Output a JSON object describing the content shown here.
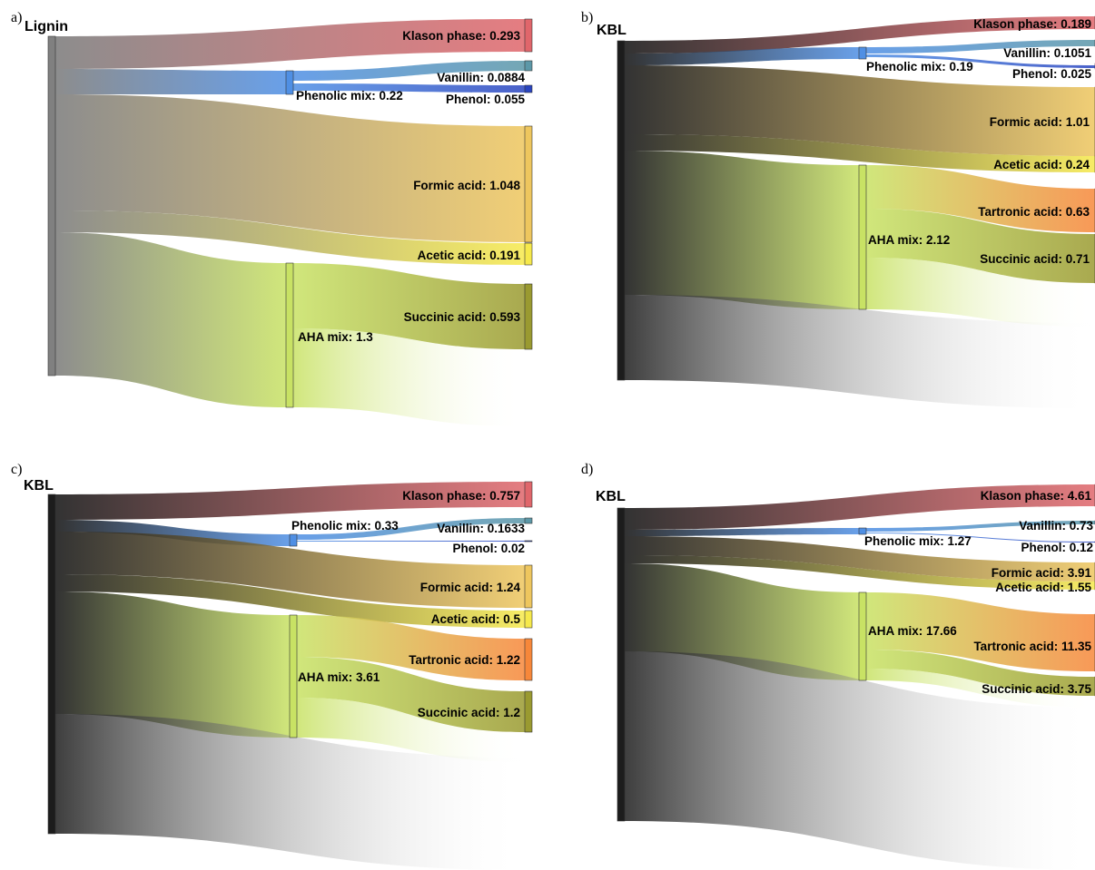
{
  "figure": {
    "type": "sankey",
    "colors": {
      "lignin_source": "#808080",
      "kbl_source": "#1c1c1c",
      "klason": "#e0666b",
      "phenolic": "#4f8fe4",
      "vanillin": "#5c98a8",
      "phenol": "#2a45c0",
      "formic": "#eec65e",
      "acetic": "#f6e94b",
      "aha": "#c8e264",
      "tartronic": "#f7873a",
      "succinic": "#9a9a30",
      "loss": "#ffffff"
    },
    "panels": [
      {
        "letter": "a)",
        "source": "Lignin",
        "source_color": "lignin_source",
        "nodes": [
          {
            "key": "phenolic",
            "label": "Phenolic mix: 0.22"
          },
          {
            "key": "aha",
            "label": "AHA mix: 1.3"
          },
          {
            "key": "klason",
            "label": "Klason phase: 0.293"
          },
          {
            "key": "vanillin",
            "label": "Vanillin: 0.0884"
          },
          {
            "key": "phenol",
            "label": "Phenol: 0.055"
          },
          {
            "key": "formic",
            "label": "Formic acid: 1.048"
          },
          {
            "key": "acetic",
            "label": "Acetic acid: 0.191"
          },
          {
            "key": "succinic",
            "label": "Succinic acid: 0.593"
          }
        ]
      },
      {
        "letter": "b)",
        "source": "KBL",
        "source_color": "kbl_source",
        "nodes": [
          {
            "key": "phenolic",
            "label": "Phenolic mix: 0.19"
          },
          {
            "key": "aha",
            "label": "AHA mix: 2.12"
          },
          {
            "key": "klason",
            "label": "Klason phase: 0.189"
          },
          {
            "key": "vanillin",
            "label": "Vanillin: 0.1051"
          },
          {
            "key": "phenol",
            "label": "Phenol: 0.025"
          },
          {
            "key": "formic",
            "label": "Formic acid: 1.01"
          },
          {
            "key": "acetic",
            "label": "Acetic acid: 0.24"
          },
          {
            "key": "tartronic",
            "label": "Tartronic acid: 0.63"
          },
          {
            "key": "succinic",
            "label": "Succinic acid: 0.71"
          }
        ]
      },
      {
        "letter": "c)",
        "source": "KBL",
        "source_color": "kbl_source",
        "nodes": [
          {
            "key": "phenolic",
            "label": "Phenolic mix: 0.33"
          },
          {
            "key": "aha",
            "label": "AHA mix: 3.61"
          },
          {
            "key": "klason",
            "label": "Klason phase: 0.757"
          },
          {
            "key": "vanillin",
            "label": "Vanillin: 0.1633"
          },
          {
            "key": "phenol",
            "label": "Phenol: 0.02"
          },
          {
            "key": "formic",
            "label": "Formic acid: 1.24"
          },
          {
            "key": "acetic",
            "label": "Acetic acid: 0.5"
          },
          {
            "key": "tartronic",
            "label": "Tartronic acid: 1.22"
          },
          {
            "key": "succinic",
            "label": "Succinic acid: 1.2"
          }
        ]
      },
      {
        "letter": "d)",
        "source": "KBL",
        "source_color": "kbl_source",
        "nodes": [
          {
            "key": "phenolic",
            "label": "Phenolic mix: 1.27"
          },
          {
            "key": "aha",
            "label": "AHA mix: 17.66"
          },
          {
            "key": "klason",
            "label": "Klason phase: 4.61"
          },
          {
            "key": "vanillin",
            "label": "Vanillin: 0.73"
          },
          {
            "key": "phenol",
            "label": "Phenol: 0.12"
          },
          {
            "key": "formic",
            "label": "Formic acid: 3.91"
          },
          {
            "key": "acetic",
            "label": "Acetic acid: 1.55"
          },
          {
            "key": "tartronic",
            "label": "Tartronic acid: 11.35"
          },
          {
            "key": "succinic",
            "label": "Succinic acid: 3.75"
          }
        ]
      }
    ]
  }
}
